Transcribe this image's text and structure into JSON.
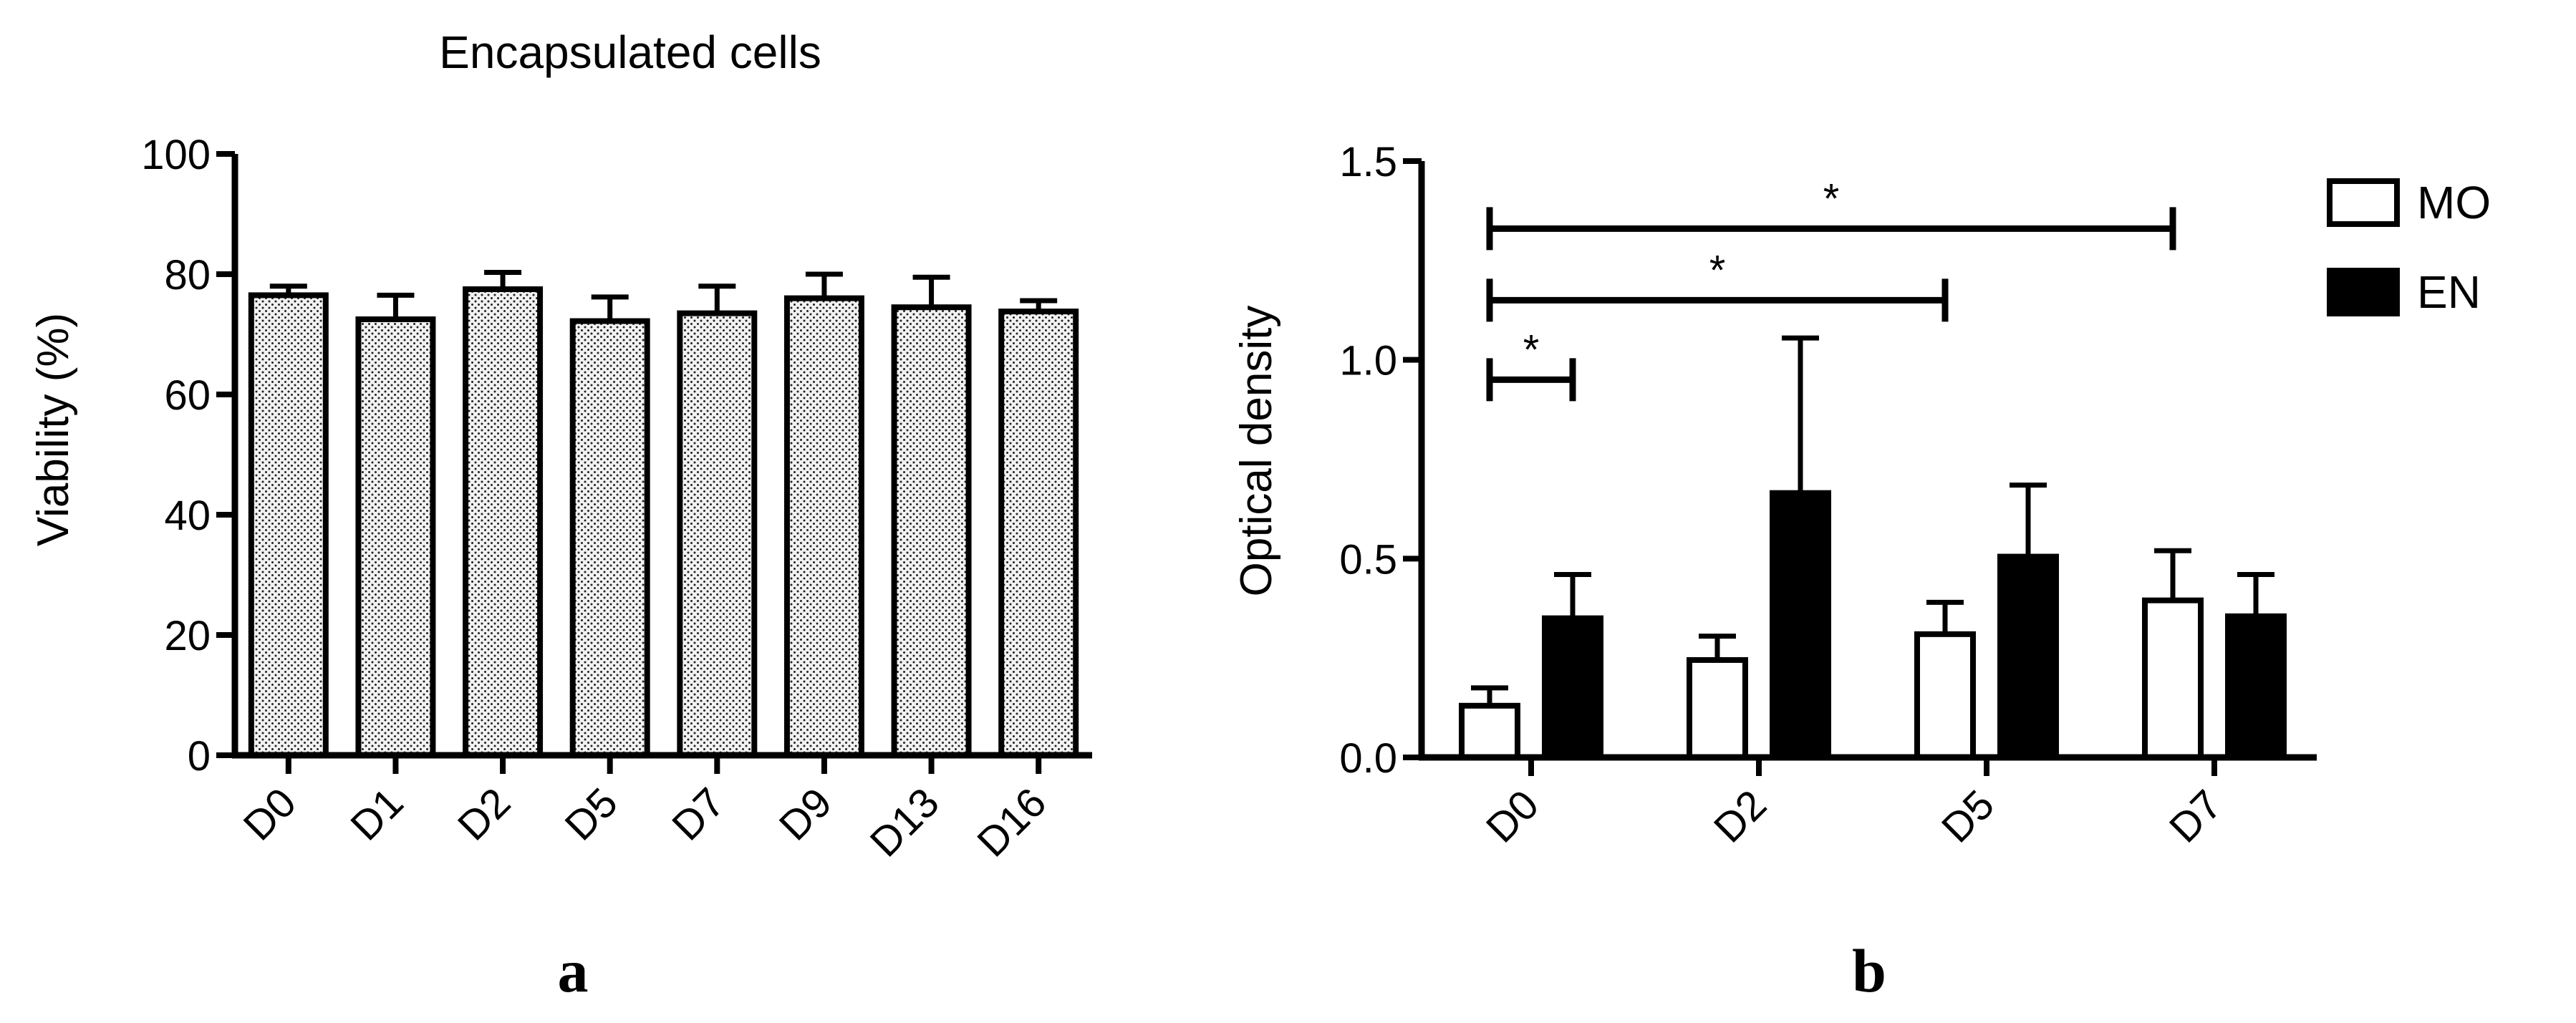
{
  "chart_data": [
    {
      "type": "bar",
      "panel_label": "a",
      "title": "Encapsulated cells",
      "xlabel": "",
      "ylabel": "Viability (%)",
      "ylim": [
        0,
        100
      ],
      "yticks": [
        "0",
        "20",
        "40",
        "60",
        "80",
        "100"
      ],
      "categories": [
        "D0",
        "D1",
        "D2",
        "D5",
        "D7",
        "D9",
        "D13",
        "D16"
      ],
      "values": [
        76.5,
        72.5,
        77.5,
        72.2,
        73.5,
        76.0,
        74.5,
        73.8
      ],
      "errors": [
        1.5,
        4.0,
        2.8,
        4.0,
        4.5,
        4.0,
        5.0,
        1.8
      ],
      "fill": "dotted light gray",
      "grid": false
    },
    {
      "type": "bar",
      "panel_label": "b",
      "title": "",
      "xlabel": "",
      "ylabel": "Optical density",
      "ylim": [
        0,
        1.5
      ],
      "yticks": [
        "0.0",
        "0.5",
        "1.0",
        "1.5"
      ],
      "categories": [
        "D0",
        "D2",
        "D5",
        "D7"
      ],
      "series": [
        {
          "name": "MO",
          "values": [
            0.13,
            0.245,
            0.31,
            0.395
          ],
          "errors": [
            0.045,
            0.06,
            0.08,
            0.125
          ],
          "color": "#ffffff"
        },
        {
          "name": "EN",
          "values": [
            0.35,
            0.665,
            0.505,
            0.355
          ],
          "errors": [
            0.11,
            0.39,
            0.18,
            0.105
          ],
          "color": "#000000"
        }
      ],
      "legend_position": "top-right",
      "significance": [
        {
          "from_category": "D0",
          "to_category": "D7",
          "level": 1.33,
          "label": "*"
        },
        {
          "from_category": "D0",
          "to_category": "D5",
          "level": 1.15,
          "label": "*"
        },
        {
          "from_category": "D0",
          "to_category": "D0",
          "span": "within-group",
          "level": 0.95,
          "label": "*"
        }
      ],
      "grid": false
    }
  ]
}
